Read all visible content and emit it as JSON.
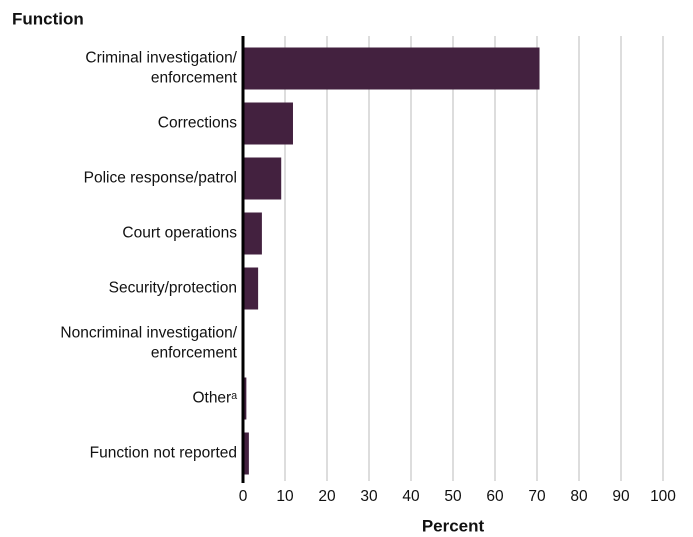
{
  "chart_data": {
    "type": "hbar",
    "title": "Function",
    "xlabel": "Percent",
    "categories": [
      "Criminal investigation/\nenforcement",
      "Corrections",
      "Police response/patrol",
      "Court operations",
      "Security/protection",
      "Noncriminal investigation/\nenforcement",
      "Otherᵃ",
      "Function not reported"
    ],
    "values": [
      70.6,
      11.9,
      9.1,
      4.5,
      3.6,
      0.1,
      0.8,
      1.4
    ],
    "color": "#43213f",
    "xlim": [
      0,
      100
    ],
    "xticks": [
      0,
      10,
      20,
      30,
      40,
      50,
      60,
      70,
      80,
      90,
      100
    ],
    "grid": true
  }
}
